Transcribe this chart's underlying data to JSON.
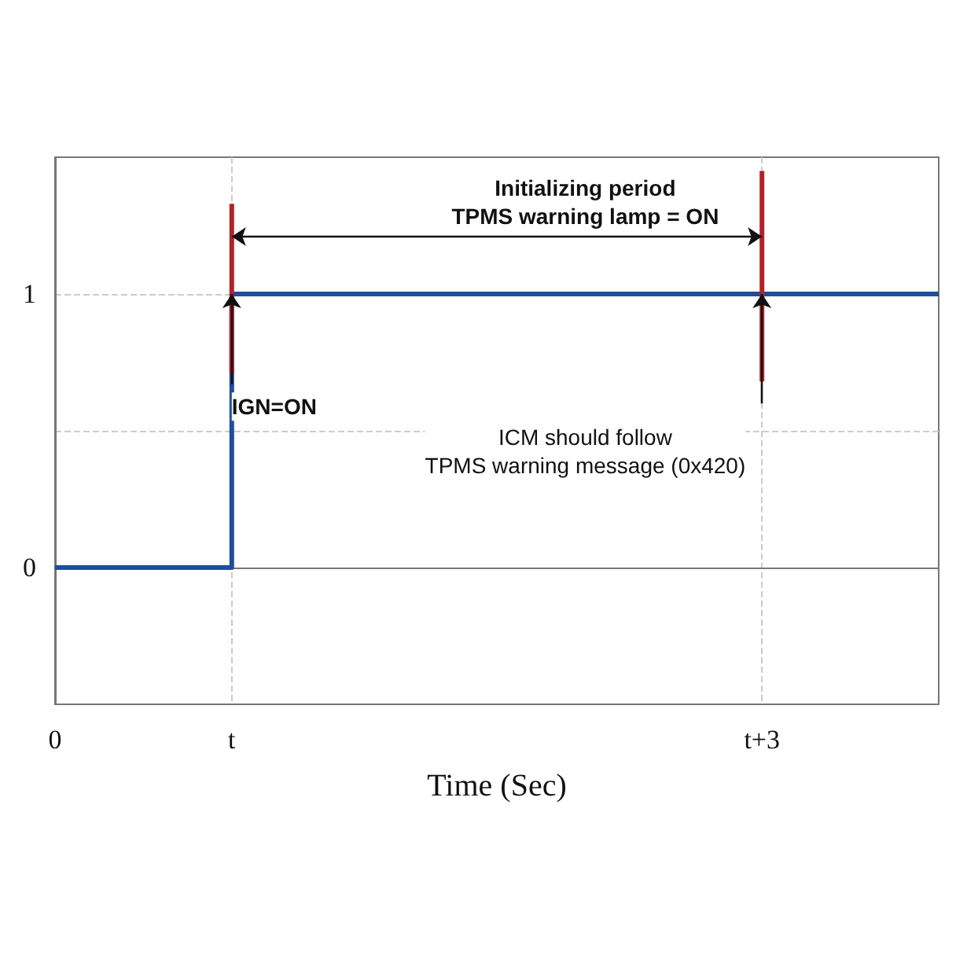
{
  "chart_data": {
    "type": "step",
    "xlabel": "Time (Sec)",
    "categories": [
      "0",
      "t",
      null,
      null,
      "t+3",
      null
    ],
    "ylim": [
      -0.5,
      1.5
    ],
    "yticks": [
      0,
      {
        "value": 0.5,
        "label": null
      },
      1
    ],
    "grid": true,
    "marker": "none",
    "line_style": "solid",
    "series": [
      {
        "color": "#1f4e9a",
        "values": [
          0,
          1,
          1,
          1,
          1,
          1
        ]
      },
      {
        "type": "line",
        "color": "#b2222a",
        "x": [
          "t",
          "t"
        ],
        "values": [
          0.71,
          1.33
        ]
      },
      {
        "type": "line",
        "color": "#b2222a",
        "x": [
          "t+3",
          "t+3"
        ],
        "values": [
          0.68,
          1.45
        ]
      }
    ],
    "annotations": [
      "Initializing period\nTPMS warning lamp = ON",
      {
        "text": "IGN=ON",
        "x": "t",
        "y": 1
      },
      {
        "text": "ICM should follow\nTPMS warning message (0x420)",
        "x": "t+3",
        "y": 1
      }
    ]
  }
}
